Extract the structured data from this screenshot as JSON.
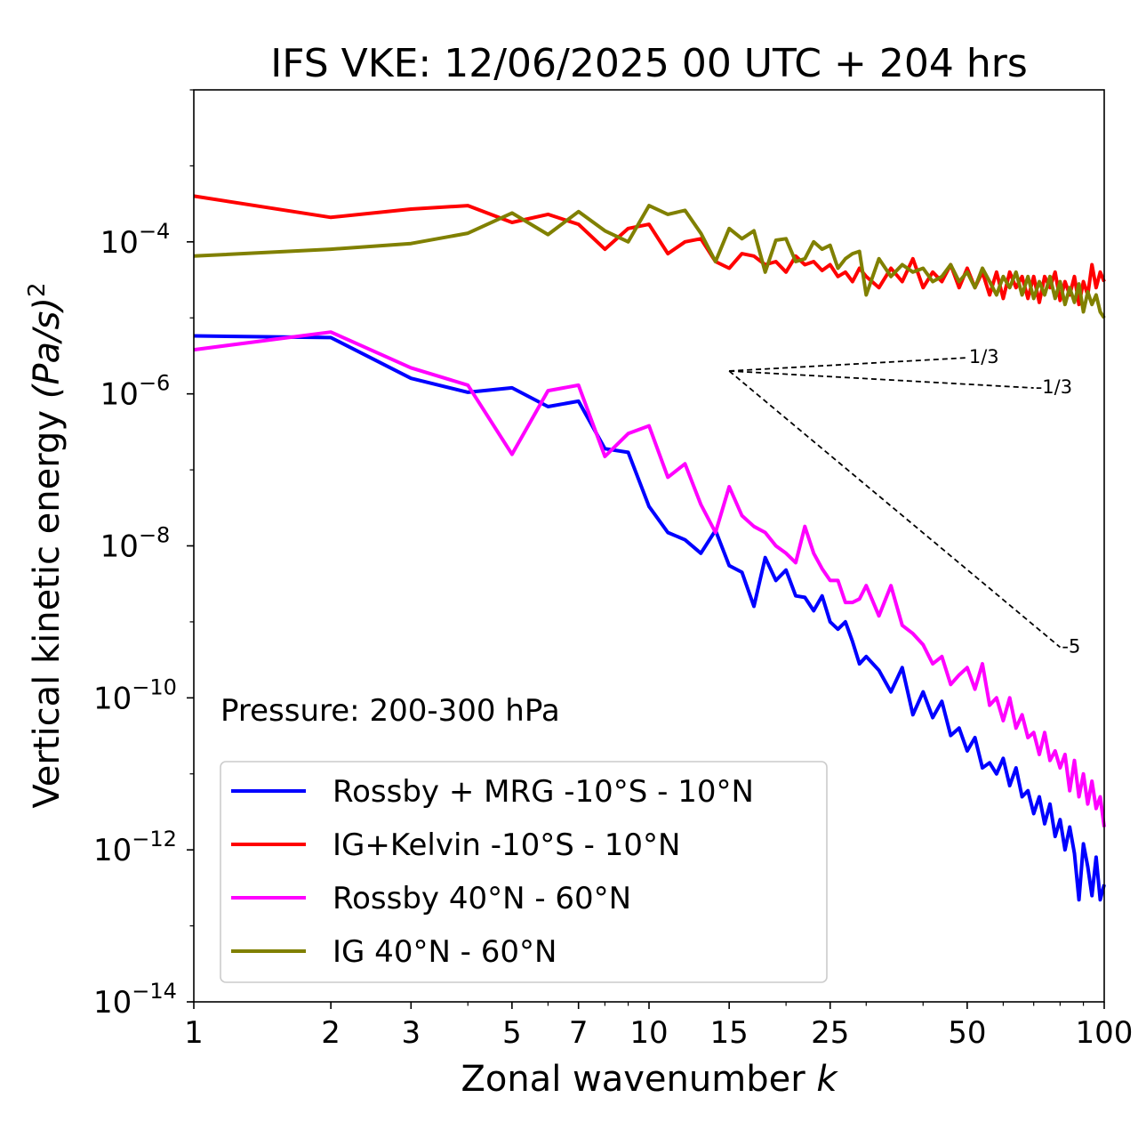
{
  "chart_data": {
    "type": "line",
    "title": "IFS VKE: 12/06/2025 00 UTC + 204 hrs",
    "xlabel": "Zonal wavenumber",
    "xlabel_var": "k",
    "ylabel": "Vertical kinetic energy",
    "ylabel_var": "(Pa/s)",
    "ylabel_exp": "2",
    "annotation": "Pressure: 200-300 hPa",
    "x_scale": "log",
    "y_scale": "log",
    "xlim": [
      1,
      100
    ],
    "ylim": [
      1e-14,
      0.01
    ],
    "x_ticks": [
      {
        "value": 1,
        "label": "1"
      },
      {
        "value": 2,
        "label": "2"
      },
      {
        "value": 3,
        "label": "3"
      },
      {
        "value": 5,
        "label": "5"
      },
      {
        "value": 7,
        "label": "7"
      },
      {
        "value": 10,
        "label": "10"
      },
      {
        "value": 15,
        "label": "15"
      },
      {
        "value": 25,
        "label": "25"
      },
      {
        "value": 50,
        "label": "50"
      },
      {
        "value": 100,
        "label": "100"
      }
    ],
    "y_ticks": [
      {
        "value": 1e-14,
        "base": "10",
        "exp": "−14"
      },
      {
        "value": 1e-12,
        "base": "10",
        "exp": "−12"
      },
      {
        "value": 1e-10,
        "base": "10",
        "exp": "−10"
      },
      {
        "value": 1e-08,
        "base": "10",
        "exp": "−8"
      },
      {
        "value": 1e-06,
        "base": "10",
        "exp": "−6"
      },
      {
        "value": 0.0001,
        "base": "10",
        "exp": "−4"
      }
    ],
    "legend_position": "lower-left",
    "grid": false,
    "reference_slopes": [
      {
        "label": "1/3",
        "slope": 0.3333,
        "x_start": 15,
        "y_start": 2e-06,
        "x_end": 50
      },
      {
        "label": "-1/3",
        "slope": -0.3333,
        "x_start": 15,
        "y_start": 2e-06,
        "x_end": 70
      },
      {
        "label": "-5",
        "slope": -5,
        "x_start": 15,
        "y_start": 2e-06,
        "x_end": 80
      }
    ],
    "series": [
      {
        "name": "Rossby + MRG -10°S - 10°N",
        "color": "#0000ff",
        "x": [
          1,
          2,
          3,
          4,
          5,
          6,
          7,
          8,
          9,
          10,
          11,
          12,
          13,
          14,
          15,
          16,
          17,
          18,
          19,
          20,
          21,
          22,
          23,
          24,
          25,
          26,
          27,
          28,
          29,
          30,
          32,
          34,
          36,
          38,
          40,
          42,
          44,
          46,
          48,
          50,
          52,
          54,
          56,
          58,
          60,
          62,
          64,
          66,
          68,
          70,
          72,
          74,
          76,
          78,
          80,
          82,
          84,
          86,
          88,
          90,
          92,
          94,
          96,
          98,
          100
        ],
        "y": [
          5.8e-06,
          5.5e-06,
          1.6e-06,
          1.05e-06,
          1.2e-06,
          6.8e-07,
          8e-07,
          1.9e-07,
          1.7e-07,
          3.3e-08,
          1.5e-08,
          1.2e-08,
          8e-09,
          1.6e-08,
          5.5e-09,
          4.5e-09,
          1.6e-09,
          7e-09,
          3.5e-09,
          4.8e-09,
          2.2e-09,
          2.1e-09,
          1.4e-09,
          2.2e-09,
          1e-09,
          8e-10,
          1e-09,
          5.5e-10,
          2.8e-10,
          3.5e-10,
          2.3e-10,
          1.2e-10,
          2.5e-10,
          6e-11,
          1.2e-10,
          5.5e-11,
          9e-11,
          3.2e-11,
          4e-11,
          2e-11,
          3e-11,
          1.2e-11,
          1.4e-11,
          1e-11,
          1.6e-11,
          7e-12,
          1.2e-11,
          5e-12,
          6e-12,
          3e-12,
          5e-12,
          2.2e-12,
          4e-12,
          1.5e-12,
          2.5e-12,
          1e-12,
          2e-12,
          9e-13,
          2.2e-13,
          1.2e-12,
          6e-13,
          2.5e-13,
          8e-13,
          2.2e-13,
          3.5e-13
        ]
      },
      {
        "name": "IG+Kelvin -10°S - 10°N",
        "color": "#ff0000",
        "x": [
          1,
          2,
          3,
          4,
          5,
          6,
          7,
          8,
          9,
          10,
          11,
          12,
          13,
          14,
          15,
          16,
          17,
          18,
          19,
          20,
          21,
          22,
          23,
          24,
          25,
          26,
          27,
          28,
          29,
          30,
          32,
          34,
          36,
          38,
          40,
          42,
          44,
          46,
          48,
          50,
          52,
          54,
          56,
          58,
          60,
          62,
          64,
          66,
          68,
          70,
          72,
          74,
          76,
          78,
          80,
          82,
          84,
          86,
          88,
          90,
          92,
          94,
          96,
          98,
          100
        ],
        "y": [
          0.0004,
          0.00021,
          0.00027,
          0.0003,
          0.00018,
          0.00023,
          0.00017,
          8e-05,
          0.00015,
          0.00017,
          7e-05,
          0.0001,
          0.00011,
          5.5e-05,
          4.5e-05,
          7e-05,
          6.5e-05,
          5e-05,
          5.5e-05,
          4e-05,
          6.5e-05,
          5e-05,
          5.5e-05,
          4.2e-05,
          5e-05,
          3.5e-05,
          4e-05,
          3e-05,
          4.5e-05,
          3.5e-05,
          2.5e-05,
          4.5e-05,
          3e-05,
          6e-05,
          2.5e-05,
          4e-05,
          3e-05,
          5e-05,
          2.5e-05,
          4.5e-05,
          2.5e-05,
          4e-05,
          2e-05,
          4e-05,
          1.8e-05,
          4e-05,
          2.5e-05,
          3.5e-05,
          1.8e-05,
          3.5e-05,
          1.6e-05,
          3.5e-05,
          2.5e-05,
          4e-05,
          1.7e-05,
          3e-05,
          2e-05,
          3.5e-05,
          1.5e-05,
          3e-05,
          2e-05,
          5e-05,
          2.5e-05,
          4e-05,
          3e-05
        ]
      },
      {
        "name": "Rossby 40°N - 60°N",
        "color": "#ff00ff",
        "x": [
          1,
          2,
          3,
          4,
          5,
          6,
          7,
          8,
          9,
          10,
          11,
          12,
          13,
          14,
          15,
          16,
          17,
          18,
          19,
          20,
          21,
          22,
          23,
          24,
          25,
          26,
          27,
          28,
          29,
          30,
          32,
          34,
          36,
          38,
          40,
          42,
          44,
          46,
          48,
          50,
          52,
          54,
          56,
          58,
          60,
          62,
          64,
          66,
          68,
          70,
          72,
          74,
          76,
          78,
          80,
          82,
          84,
          86,
          88,
          90,
          92,
          94,
          96,
          98,
          100
        ],
        "y": [
          3.8e-06,
          6.5e-06,
          2.2e-06,
          1.3e-06,
          1.6e-07,
          1.1e-06,
          1.3e-06,
          1.5e-07,
          3e-07,
          3.8e-07,
          8e-08,
          1.2e-07,
          3.5e-08,
          1.5e-08,
          6e-08,
          2.5e-08,
          1.8e-08,
          1.5e-08,
          1e-08,
          8e-09,
          6e-09,
          1.8e-08,
          8e-09,
          5e-09,
          3.5e-09,
          3.5e-09,
          1.8e-09,
          1.8e-09,
          2e-09,
          3e-09,
          1.2e-09,
          3e-09,
          9e-10,
          7e-10,
          5e-10,
          2.8e-10,
          3.5e-10,
          1.5e-10,
          2e-10,
          2.5e-10,
          1.3e-10,
          2.8e-10,
          8e-11,
          1e-10,
          5e-11,
          1e-10,
          4e-11,
          6e-11,
          3e-11,
          3.5e-11,
          1.8e-11,
          3.5e-11,
          1.5e-11,
          2e-11,
          1.2e-11,
          1.8e-11,
          6e-12,
          1.5e-11,
          5e-12,
          1e-11,
          4e-12,
          8e-12,
          3.5e-12,
          5e-12,
          2e-12
        ]
      },
      {
        "name": "IG 40°N - 60°N",
        "color": "#808000",
        "x": [
          1,
          2,
          3,
          4,
          5,
          6,
          7,
          8,
          9,
          10,
          11,
          12,
          13,
          14,
          15,
          16,
          17,
          18,
          19,
          20,
          21,
          22,
          23,
          24,
          25,
          26,
          27,
          28,
          29,
          30,
          32,
          34,
          36,
          38,
          40,
          42,
          44,
          46,
          48,
          50,
          52,
          54,
          56,
          58,
          60,
          62,
          64,
          66,
          68,
          70,
          72,
          74,
          76,
          78,
          80,
          82,
          84,
          86,
          88,
          90,
          92,
          94,
          96,
          98,
          100
        ],
        "y": [
          6.5e-05,
          8e-05,
          9.5e-05,
          0.00013,
          0.00024,
          0.000125,
          0.00025,
          0.00014,
          0.0001,
          0.0003,
          0.00023,
          0.00026,
          0.00013,
          5.5e-05,
          0.00015,
          0.00011,
          0.00014,
          4e-05,
          0.000105,
          0.00011,
          5.5e-05,
          6e-05,
          0.0001,
          8e-05,
          9e-05,
          4.5e-05,
          6e-05,
          7e-05,
          7.5e-05,
          2e-05,
          6e-05,
          3.5e-05,
          5e-05,
          4e-05,
          4.5e-05,
          3e-05,
          3.5e-05,
          5e-05,
          3e-05,
          4e-05,
          2.5e-05,
          4.5e-05,
          3e-05,
          2e-05,
          3.5e-05,
          2.5e-05,
          4e-05,
          2e-05,
          3.5e-05,
          1.8e-05,
          3e-05,
          2e-05,
          3.5e-05,
          1.8e-05,
          3e-05,
          1.5e-05,
          2.5e-05,
          1.6e-05,
          2.8e-05,
          1.2e-05,
          2.2e-05,
          1.5e-05,
          2e-05,
          1.2e-05,
          1e-05
        ]
      }
    ]
  }
}
